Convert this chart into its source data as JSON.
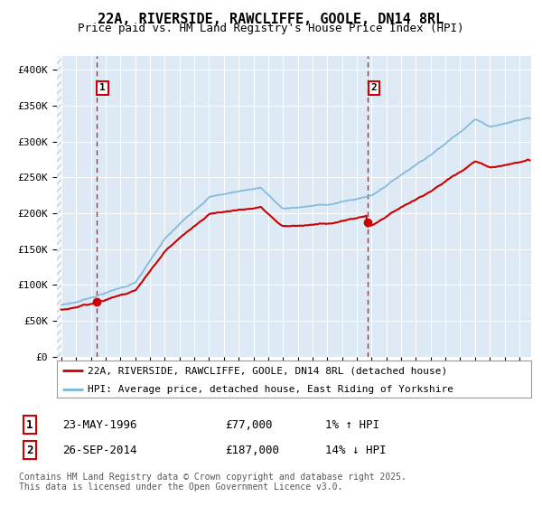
{
  "title": "22A, RIVERSIDE, RAWCLIFFE, GOOLE, DN14 8RL",
  "subtitle": "Price paid vs. HM Land Registry's House Price Index (HPI)",
  "xlim_start": 1993.7,
  "xlim_end": 2025.8,
  "ylim": [
    0,
    420000
  ],
  "yticks": [
    0,
    50000,
    100000,
    150000,
    200000,
    250000,
    300000,
    350000,
    400000
  ],
  "ytick_labels": [
    "£0",
    "£50K",
    "£100K",
    "£150K",
    "£200K",
    "£250K",
    "£300K",
    "£350K",
    "£400K"
  ],
  "background_color": "#ddeaf5",
  "grid_color": "#ffffff",
  "red_line_color": "#cc0000",
  "blue_line_color": "#7ab5d8",
  "dashed_vline_color": "#cc0000",
  "hatch_color": "#bbbbbb",
  "sale1_x": 1996.39,
  "sale1_y": 77000,
  "sale2_x": 2014.74,
  "sale2_y": 187000,
  "legend_label_red": "22A, RIVERSIDE, RAWCLIFFE, GOOLE, DN14 8RL (detached house)",
  "legend_label_blue": "HPI: Average price, detached house, East Riding of Yorkshire",
  "footer": "Contains HM Land Registry data © Crown copyright and database right 2025.\nThis data is licensed under the Open Government Licence v3.0.",
  "title_fontsize": 11,
  "subtitle_fontsize": 9,
  "tick_fontsize": 7,
  "legend_fontsize": 8,
  "table_fontsize": 9,
  "footer_fontsize": 7,
  "hpi_start_year": 1994.0,
  "red_start_year": 1994.0,
  "hatch_end_year": 1994.0
}
